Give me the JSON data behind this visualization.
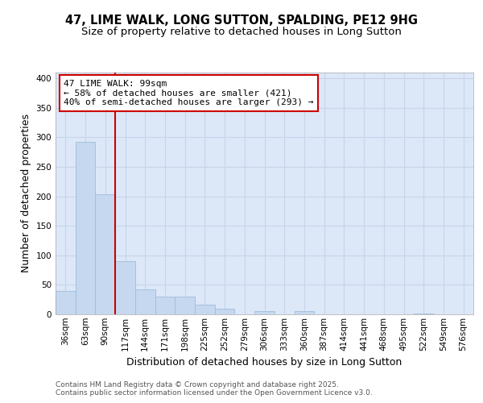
{
  "title_line1": "47, LIME WALK, LONG SUTTON, SPALDING, PE12 9HG",
  "title_line2": "Size of property relative to detached houses in Long Sutton",
  "xlabel": "Distribution of detached houses by size in Long Sutton",
  "ylabel": "Number of detached properties",
  "categories": [
    "36sqm",
    "63sqm",
    "90sqm",
    "117sqm",
    "144sqm",
    "171sqm",
    "198sqm",
    "225sqm",
    "252sqm",
    "279sqm",
    "306sqm",
    "333sqm",
    "360sqm",
    "387sqm",
    "414sqm",
    "441sqm",
    "468sqm",
    "495sqm",
    "522sqm",
    "549sqm",
    "576sqm"
  ],
  "values": [
    40,
    293,
    204,
    90,
    43,
    30,
    30,
    16,
    9,
    0,
    6,
    0,
    5,
    0,
    0,
    0,
    0,
    0,
    2,
    0,
    0
  ],
  "bar_color": "#c5d8f0",
  "bar_edge_color": "#a0bcd8",
  "grid_color": "#c8d4e8",
  "background_color": "#ffffff",
  "plot_bg_color": "#dce8f8",
  "vline_color": "#cc0000",
  "vline_x_index": 2,
  "annotation_title": "47 LIME WALK: 99sqm",
  "annotation_line1": "← 58% of detached houses are smaller (421)",
  "annotation_line2": "40% of semi-detached houses are larger (293) →",
  "annotation_box_color": "white",
  "annotation_box_edge": "#cc0000",
  "ylim": [
    0,
    410
  ],
  "yticks": [
    0,
    50,
    100,
    150,
    200,
    250,
    300,
    350,
    400
  ],
  "footer_line1": "Contains HM Land Registry data © Crown copyright and database right 2025.",
  "footer_line2": "Contains public sector information licensed under the Open Government Licence v3.0.",
  "title_fontsize": 10.5,
  "subtitle_fontsize": 9.5,
  "axis_label_fontsize": 9,
  "tick_fontsize": 7.5,
  "annotation_fontsize": 8,
  "footer_fontsize": 6.5
}
